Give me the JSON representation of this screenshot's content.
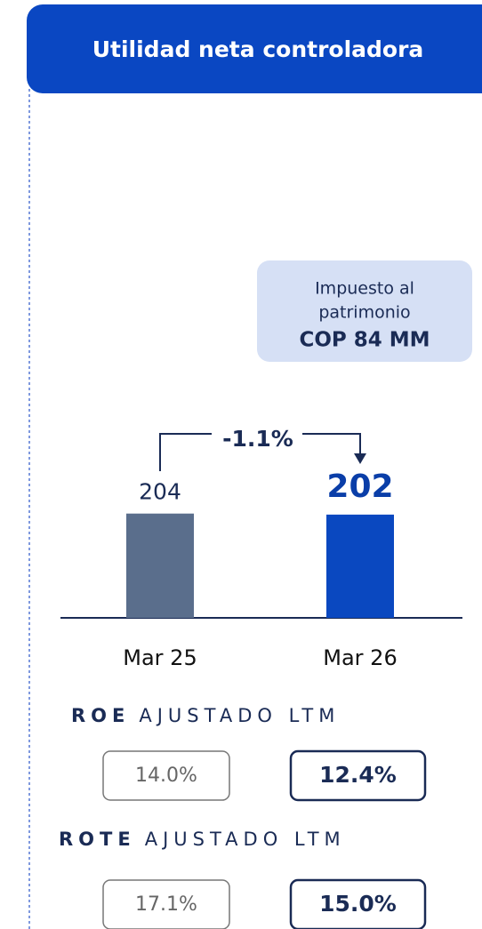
{
  "chart_data": {
    "type": "bar",
    "title": "Utilidad neta controladora",
    "categories": [
      "Mar 25",
      "Mar 26"
    ],
    "values": [
      204,
      202
    ],
    "colors": [
      "#5a6e8c",
      "#0a48c0"
    ],
    "change_label": "-1.1%",
    "annotation": {
      "line1": "Impuesto al",
      "line2": "patrimonio",
      "amount": "COP 84 MM"
    },
    "metrics": [
      {
        "name": "ROE",
        "label": "AJUSTADO LTM",
        "values": [
          "14.0%",
          "12.4%"
        ]
      },
      {
        "name": "ROTE",
        "label": "AJUSTADO LTM",
        "values": [
          "17.1%",
          "15.0%"
        ]
      }
    ]
  }
}
